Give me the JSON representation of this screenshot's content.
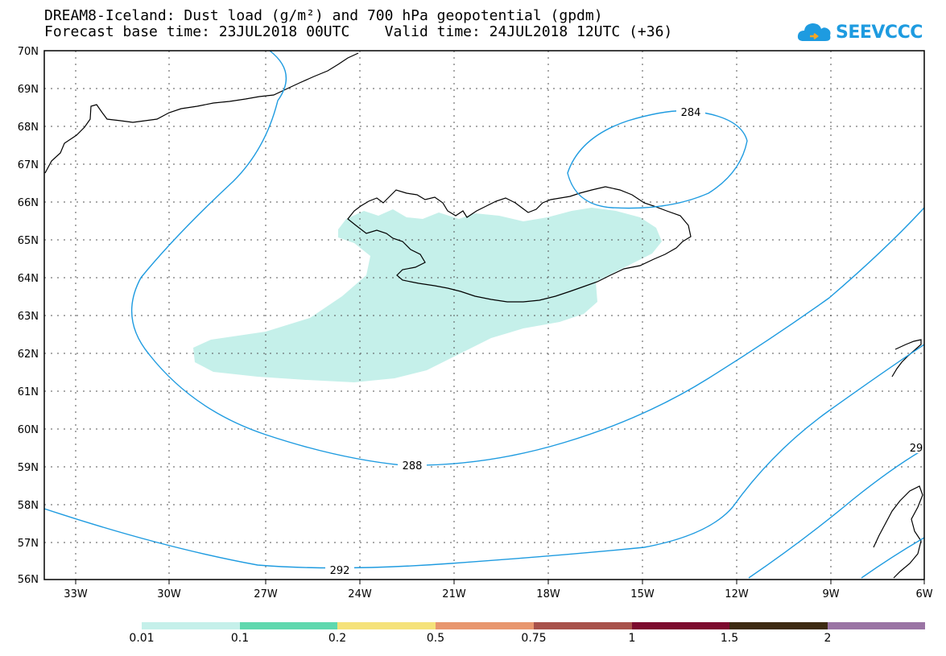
{
  "title_line1": "DREAM8-Iceland: Dust load (g/m²) and 700 hPa geopotential (gpdm)",
  "title_line2": "Forecast base time: 23JUL2018 00UTC    Valid time: 24JUL2018 12UTC (+36)",
  "logo_text": "SEEVCCC",
  "lat_labels": [
    "70N",
    "69N",
    "68N",
    "67N",
    "66N",
    "65N",
    "64N",
    "63N",
    "62N",
    "61N",
    "60N",
    "59N",
    "58N",
    "57N",
    "56N"
  ],
  "lon_labels": [
    "33W",
    "30W",
    "27W",
    "24W",
    "21W",
    "18W",
    "15W",
    "12W",
    "9W",
    "6W"
  ],
  "contour_labels": {
    "c284": "284",
    "c288": "288",
    "c292": "292",
    "c29x": "29"
  },
  "legend": {
    "labels": [
      "0.01",
      "0.1",
      "0.2",
      "0.5",
      "0.75",
      "1",
      "1.5",
      "2"
    ],
    "colors": [
      "#c5f0ea",
      "#5fd8ae",
      "#f5e27a",
      "#e8966e",
      "#a8514a",
      "#7c0a2e",
      "#3d2a12",
      "#9a74a4"
    ]
  },
  "colors": {
    "contour": "#1e9be0",
    "dust": "#c5f0ea",
    "coast": "#000000"
  }
}
